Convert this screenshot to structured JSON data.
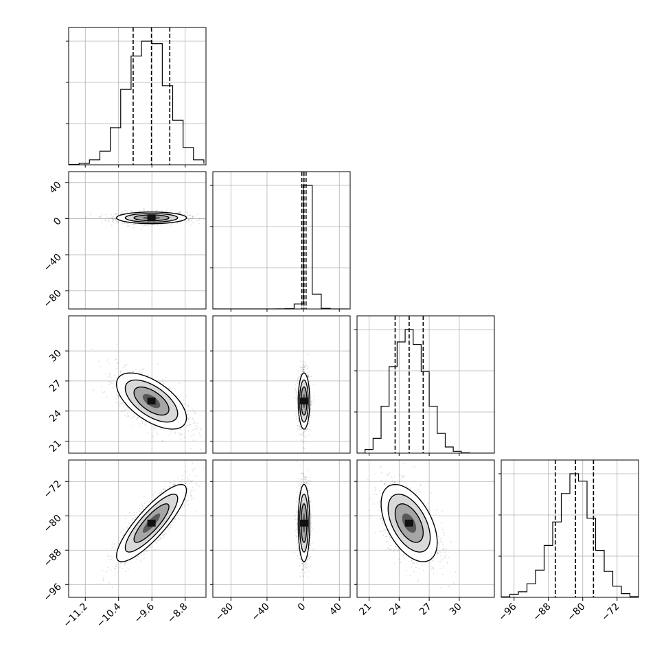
{
  "chart_data": {
    "type": "corner",
    "grid": true,
    "colors": {
      "line": "#000000",
      "grid": "#b0b0b0",
      "points": "#000000"
    },
    "parameters": [
      {
        "index": 0,
        "range": [
          -11.6,
          -8.3
        ],
        "ticks": [
          -11.2,
          -10.4,
          -9.6,
          -8.8
        ],
        "tick_labels": [
          "−11.2",
          "−10.4",
          "−9.6",
          "−8.8"
        ],
        "quantiles": [
          -10.05,
          -9.61,
          -9.17
        ]
      },
      {
        "index": 1,
        "range": [
          -100,
          52
        ],
        "ticks": [
          -80,
          -40,
          0,
          40
        ],
        "tick_labels": [
          "−80",
          "−40",
          "0",
          "40"
        ],
        "quantiles": [
          -1.5,
          0.9,
          3.2
        ]
      },
      {
        "index": 2,
        "range": [
          19.8,
          33.5
        ],
        "ticks": [
          21,
          24,
          27,
          30
        ],
        "tick_labels": [
          "21",
          "24",
          "27",
          "30"
        ],
        "quantiles": [
          23.6,
          25.0,
          26.4
        ]
      },
      {
        "index": 3,
        "range": [
          -99,
          -67
        ],
        "ticks": [
          -96,
          -88,
          -80,
          -72
        ],
        "tick_labels": [
          "−96",
          "−88",
          "−80",
          "−72"
        ],
        "quantiles": [
          -86.4,
          -81.7,
          -77.5
        ]
      }
    ],
    "histograms": [
      {
        "param": 0,
        "bin_edges": [
          -11.6,
          -11.35,
          -11.1,
          -10.85,
          -10.6,
          -10.35,
          -10.1,
          -9.85,
          -9.6,
          -9.35,
          -9.1,
          -8.85,
          -8.6,
          -8.35
        ],
        "counts": [
          2,
          12,
          40,
          110,
          300,
          610,
          880,
          1000,
          980,
          640,
          360,
          140,
          40,
          8
        ]
      },
      {
        "param": 1,
        "bin_edges": [
          -100,
          -90,
          -80,
          -70,
          -60,
          -50,
          -40,
          -30,
          -20,
          -10,
          0,
          10,
          20,
          30,
          40,
          50
        ],
        "counts": [
          0,
          0,
          0,
          0,
          0,
          0,
          0,
          1,
          2,
          40,
          1000,
          120,
          5,
          0,
          0
        ]
      },
      {
        "param": 2,
        "bin_edges": [
          19.8,
          20.6,
          21.4,
          22.2,
          23.0,
          23.8,
          24.6,
          25.4,
          26.2,
          27.0,
          27.8,
          28.6,
          29.4,
          30.2,
          31.0,
          31.8,
          32.6,
          33.4
        ],
        "counts": [
          0,
          30,
          120,
          380,
          700,
          900,
          1000,
          880,
          660,
          380,
          160,
          50,
          15,
          3,
          0,
          0,
          0
        ]
      },
      {
        "param": 3,
        "bin_edges": [
          -99,
          -97,
          -95,
          -93,
          -91,
          -89,
          -87,
          -85,
          -83,
          -81,
          -79,
          -77,
          -75,
          -73,
          -71,
          -69,
          -67
        ],
        "counts": [
          4,
          25,
          45,
          110,
          220,
          420,
          610,
          840,
          1000,
          940,
          640,
          380,
          210,
          90,
          30,
          6
        ]
      }
    ],
    "pairs": [
      {
        "x_param": 0,
        "y_param": 1,
        "center": [
          -9.61,
          0.9
        ],
        "sd": [
          0.42,
          3.2
        ],
        "corr": 0.0
      },
      {
        "x_param": 0,
        "y_param": 2,
        "center": [
          -9.61,
          25.0
        ],
        "sd": [
          0.42,
          1.4
        ],
        "corr": -0.6
      },
      {
        "x_param": 0,
        "y_param": 3,
        "center": [
          -9.61,
          -81.7
        ],
        "sd": [
          0.42,
          4.5
        ],
        "corr": 0.85
      },
      {
        "x_param": 1,
        "y_param": 2,
        "center": [
          0.9,
          25.0
        ],
        "sd": [
          3.2,
          1.4
        ],
        "corr": 0.0
      },
      {
        "x_param": 1,
        "y_param": 3,
        "center": [
          0.9,
          -81.7
        ],
        "sd": [
          3.2,
          4.5
        ],
        "corr": 0.0
      },
      {
        "x_param": 2,
        "y_param": 3,
        "center": [
          25.0,
          -81.7
        ],
        "sd": [
          1.4,
          4.5
        ],
        "corr": -0.5
      }
    ]
  }
}
